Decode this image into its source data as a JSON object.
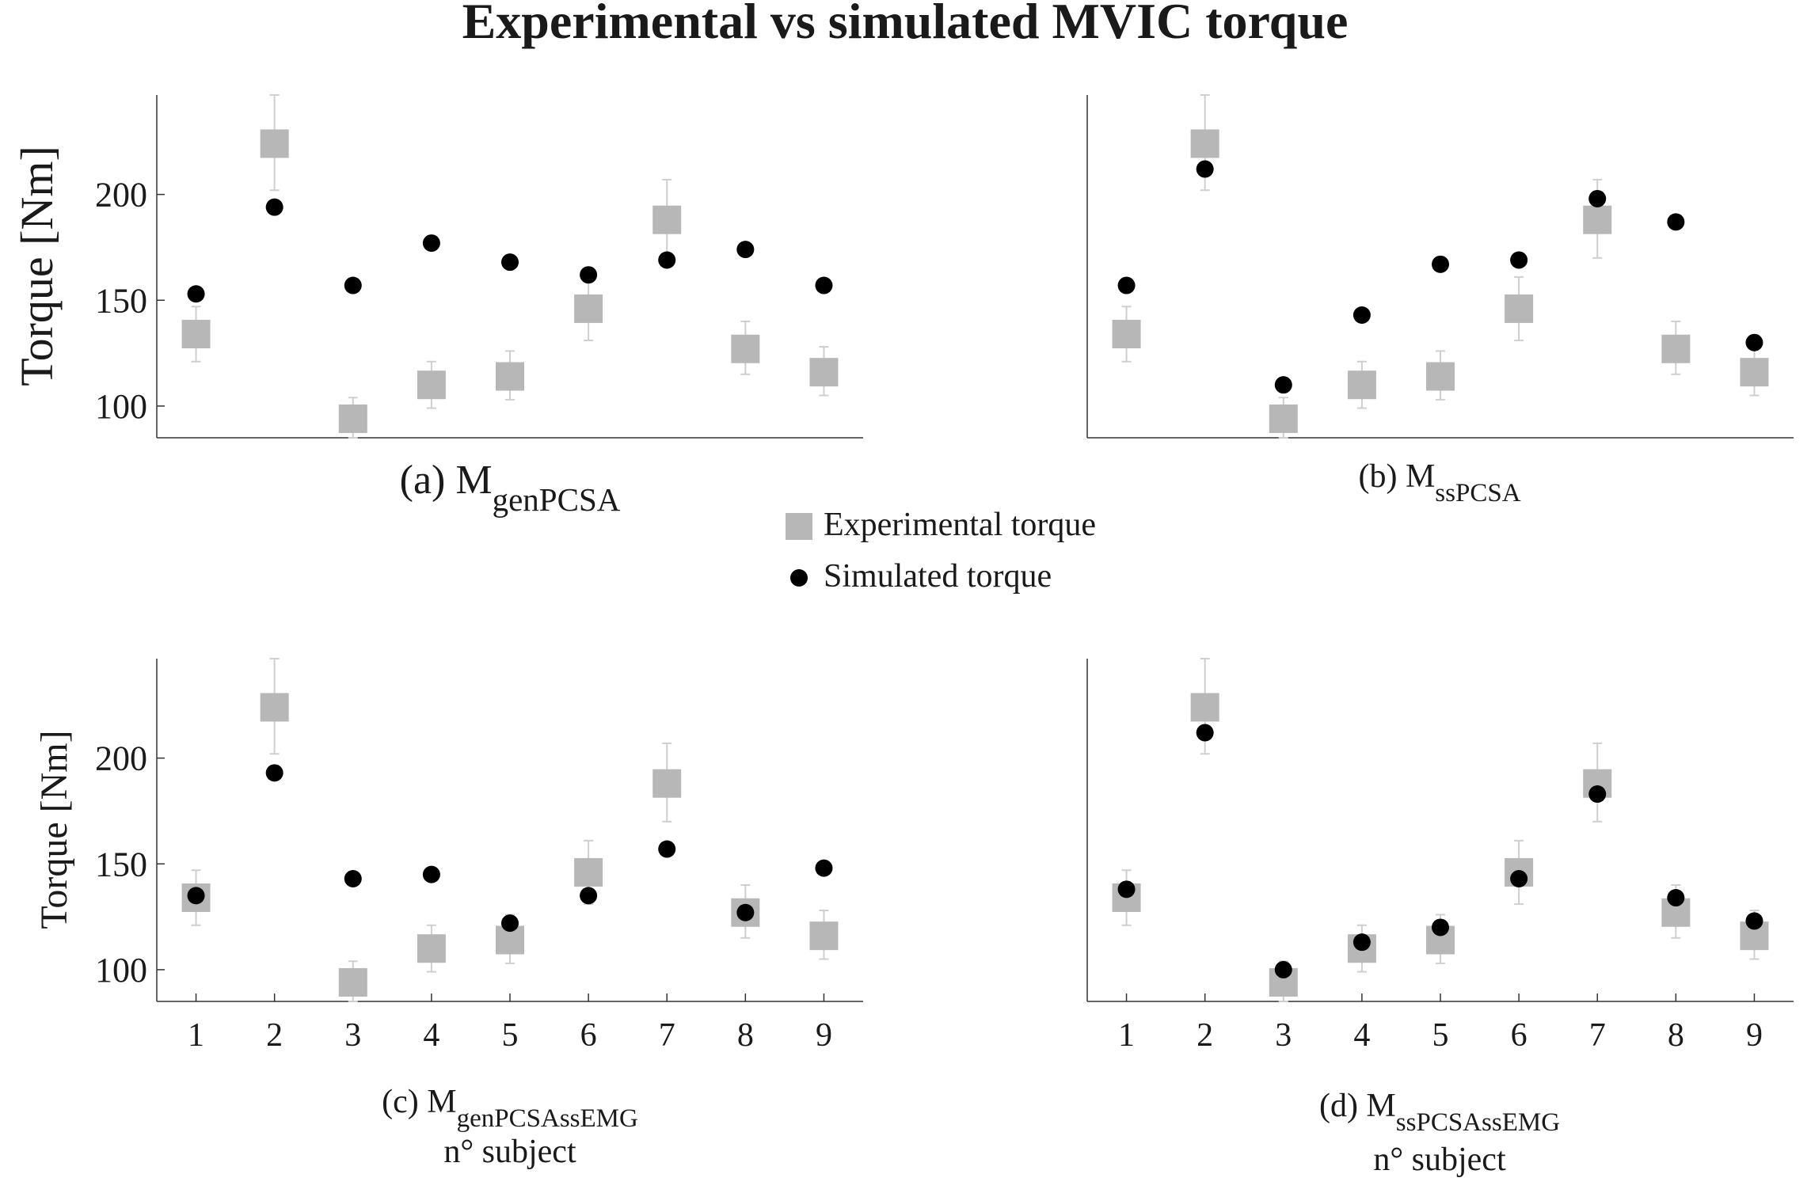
{
  "figure_title": "Experimental vs simulated MVIC torque",
  "legend": {
    "experimental": "Experimental torque",
    "simulated": "Simulated torque"
  },
  "colors": {
    "experimental": "#b7b7b7",
    "errorbar": "#cfcfcf",
    "simulated": "#000000",
    "axis": "#333333",
    "text": "#1a1a1a"
  },
  "chart_data": [
    {
      "type": "scatter",
      "caption_prefix": "(a) M",
      "caption_sub": "genPCSA",
      "xlabel": "",
      "ylabel": "Torque [Nm]",
      "x": [
        1,
        2,
        3,
        4,
        5,
        6,
        7,
        8,
        9
      ],
      "show_xticks": false,
      "xlim": [
        0.5,
        9.5
      ],
      "ylim": [
        85,
        247
      ],
      "yticks": [
        100,
        150,
        200
      ],
      "series": [
        {
          "name": "Experimental torque",
          "values": [
            134,
            224,
            94,
            110,
            114,
            146,
            188,
            127,
            116
          ],
          "err_low": [
            121,
            202,
            85,
            99,
            103,
            131,
            170,
            115,
            105
          ],
          "err_high": [
            147,
            247,
            104,
            121,
            126,
            161,
            207,
            140,
            128
          ]
        },
        {
          "name": "Simulated torque",
          "values": [
            153,
            194,
            157,
            177,
            168,
            162,
            169,
            174,
            157
          ]
        }
      ]
    },
    {
      "type": "scatter",
      "caption_prefix": "(b) M",
      "caption_sub": "ssPCSA",
      "xlabel": "",
      "ylabel": "",
      "x": [
        1,
        2,
        3,
        4,
        5,
        6,
        7,
        8,
        9
      ],
      "show_xticks": false,
      "xlim": [
        0.5,
        9.5
      ],
      "ylim": [
        85,
        247
      ],
      "yticks": [],
      "series": [
        {
          "name": "Experimental torque",
          "values": [
            134,
            224,
            94,
            110,
            114,
            146,
            188,
            127,
            116
          ],
          "err_low": [
            121,
            202,
            85,
            99,
            103,
            131,
            170,
            115,
            105
          ],
          "err_high": [
            147,
            247,
            104,
            121,
            126,
            161,
            207,
            140,
            128
          ]
        },
        {
          "name": "Simulated torque",
          "values": [
            157,
            212,
            110,
            143,
            167,
            169,
            198,
            187,
            130
          ]
        }
      ]
    },
    {
      "type": "scatter",
      "caption_prefix": "(c) M",
      "caption_sub": "genPCSAssEMG",
      "xlabel": "n° subject",
      "ylabel": "Torque [Nm]",
      "x": [
        1,
        2,
        3,
        4,
        5,
        6,
        7,
        8,
        9
      ],
      "show_xticks": true,
      "xlim": [
        0.5,
        9.5
      ],
      "ylim": [
        85,
        247
      ],
      "yticks": [
        100,
        150,
        200
      ],
      "series": [
        {
          "name": "Experimental torque",
          "values": [
            134,
            224,
            94,
            110,
            114,
            146,
            188,
            127,
            116
          ],
          "err_low": [
            121,
            202,
            85,
            99,
            103,
            131,
            170,
            115,
            105
          ],
          "err_high": [
            147,
            247,
            104,
            121,
            126,
            161,
            207,
            140,
            128
          ]
        },
        {
          "name": "Simulated torque",
          "values": [
            135,
            193,
            143,
            145,
            122,
            135,
            157,
            127,
            148
          ]
        }
      ]
    },
    {
      "type": "scatter",
      "caption_prefix": "(d) M",
      "caption_sub": "ssPCSAssEMG",
      "xlabel": "n° subject",
      "ylabel": "",
      "x": [
        1,
        2,
        3,
        4,
        5,
        6,
        7,
        8,
        9
      ],
      "show_xticks": true,
      "xlim": [
        0.5,
        9.5
      ],
      "ylim": [
        85,
        247
      ],
      "yticks": [],
      "series": [
        {
          "name": "Experimental torque",
          "values": [
            134,
            224,
            94,
            110,
            114,
            146,
            188,
            127,
            116
          ],
          "err_low": [
            121,
            202,
            85,
            99,
            103,
            131,
            170,
            115,
            105
          ],
          "err_high": [
            147,
            247,
            104,
            121,
            126,
            161,
            207,
            140,
            128
          ]
        },
        {
          "name": "Simulated torque",
          "values": [
            138,
            212,
            100,
            113,
            120,
            143,
            183,
            134,
            123
          ]
        }
      ]
    }
  ]
}
